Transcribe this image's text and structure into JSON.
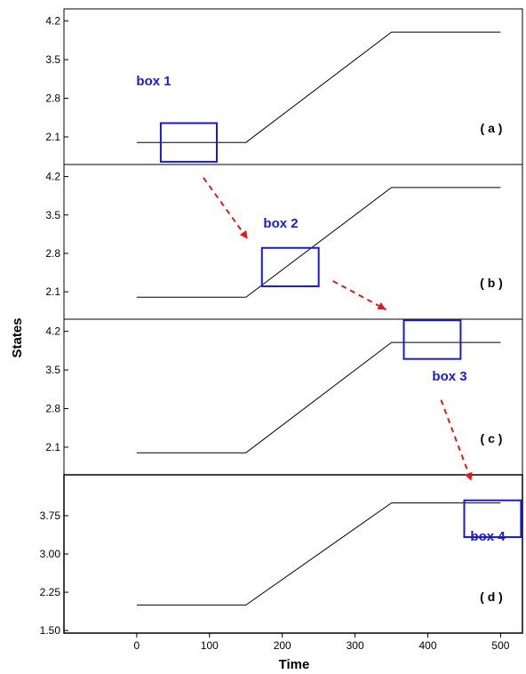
{
  "chart_data": {
    "type": "line",
    "xlabel": "Time",
    "ylabel": "States",
    "xlim": [
      -100,
      530
    ],
    "x_ticks": [
      0,
      100,
      200,
      300,
      400,
      500
    ],
    "x_tick_labels": [
      "0",
      "100",
      "200",
      "300",
      "400",
      "500"
    ],
    "grid": false,
    "colors": {
      "line": "#000000",
      "box": "#1a1ad6",
      "arrow": "#e01a1a"
    },
    "panels": [
      {
        "label": "( a )",
        "ylim": [
          1.6,
          4.42
        ],
        "y_ticks": [
          2.1,
          2.8,
          3.5,
          4.2
        ],
        "y_tick_labels": [
          "2.1",
          "2.8",
          "3.5",
          "4.2"
        ],
        "series": [
          {
            "x": [
              0,
              150,
              350,
              500
            ],
            "y": [
              2.0,
              2.0,
              4.0,
              4.0
            ]
          }
        ],
        "box": {
          "label": "box 1",
          "x": [
            33,
            110
          ],
          "y": [
            1.65,
            2.35
          ]
        }
      },
      {
        "label": "( b )",
        "ylim": [
          1.6,
          4.42
        ],
        "y_ticks": [
          2.1,
          2.8,
          3.5,
          4.2
        ],
        "y_tick_labels": [
          "2.1",
          "2.8",
          "3.5",
          "4.2"
        ],
        "series": [
          {
            "x": [
              0,
              150,
              350,
              500
            ],
            "y": [
              2.0,
              2.0,
              4.0,
              4.0
            ]
          }
        ],
        "box": {
          "label": "box 2",
          "x": [
            172,
            250
          ],
          "y": [
            2.2,
            2.9
          ]
        }
      },
      {
        "label": "( c )",
        "ylim": [
          1.6,
          4.42
        ],
        "y_ticks": [
          2.1,
          2.8,
          3.5,
          4.2
        ],
        "y_tick_labels": [
          "2.1",
          "2.8",
          "3.5",
          "4.2"
        ],
        "series": [
          {
            "x": [
              0,
              150,
              350,
              500
            ],
            "y": [
              2.0,
              2.0,
              4.0,
              4.0
            ]
          }
        ],
        "box": {
          "label": "box 3",
          "x": [
            367,
            445
          ],
          "y": [
            3.7,
            4.4
          ]
        }
      },
      {
        "label": "( d )",
        "ylim": [
          1.45,
          4.55
        ],
        "y_ticks": [
          1.5,
          2.25,
          3.0,
          3.75
        ],
        "y_tick_labels": [
          "1.50",
          "2.25",
          "3.00",
          "3.75"
        ],
        "series": [
          {
            "x": [
              0,
              150,
              350,
              500
            ],
            "y": [
              2.0,
              2.0,
              4.0,
              4.0
            ]
          }
        ],
        "box": {
          "label": "box 4",
          "x": [
            450,
            528
          ],
          "y": [
            3.33,
            4.05
          ]
        }
      }
    ]
  }
}
